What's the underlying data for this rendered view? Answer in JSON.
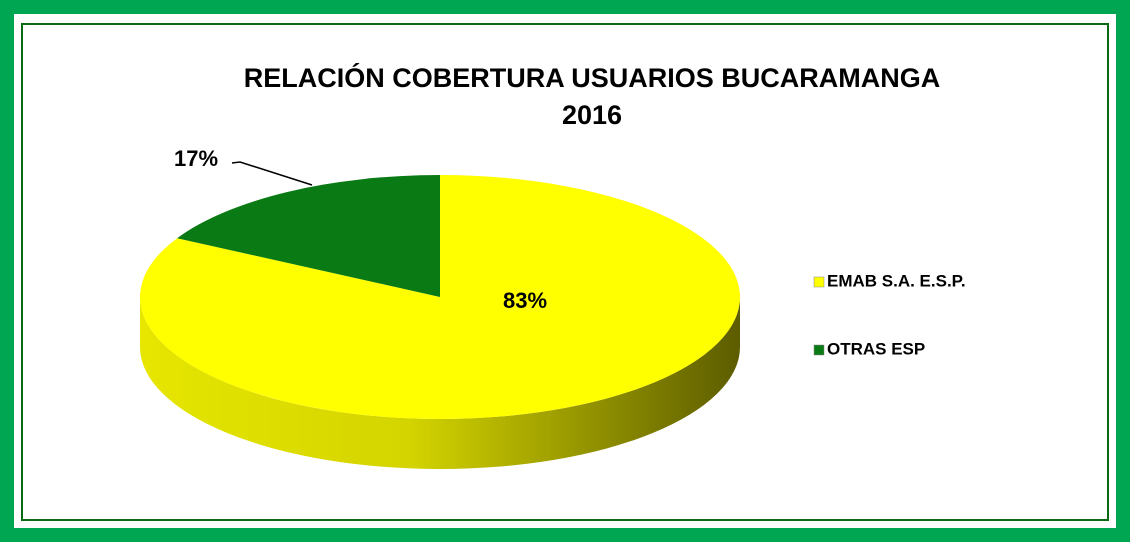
{
  "chart_data": {
    "type": "pie",
    "title": [
      "RELACIÓN COBERTURA USUARIOS BUCARAMANGA",
      "2016"
    ],
    "categories": [
      "EMAB S.A. E.S.P.",
      "OTRAS ESP"
    ],
    "values": [
      83,
      17
    ],
    "value_labels": [
      "83%",
      "17%"
    ],
    "colors": [
      "#ffff00",
      "#0a7a14"
    ],
    "side_colors": [
      "#5c5c00",
      "#044a0a"
    ]
  }
}
